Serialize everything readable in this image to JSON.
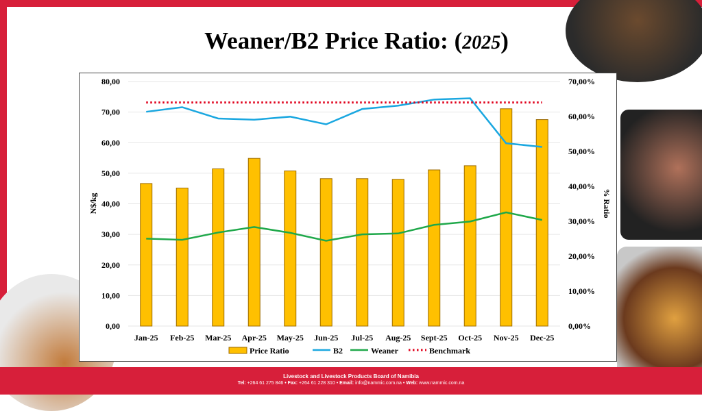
{
  "title": {
    "main": "Weaner/B2 Price Ratio: (",
    "year": "2025",
    "close": ")"
  },
  "footer": {
    "org": "Livestock and Livestock Products Board of Namibia",
    "tel_label": "Tel:",
    "tel": "+264 61 275 846",
    "fax_label": "Fax:",
    "fax": "+264 61 228 310",
    "email_label": "Email:",
    "email": "info@nammic.com.na",
    "web_label": "Web:",
    "web": "www.nammic.com.na"
  },
  "colors": {
    "frame": "#d71f3a",
    "bars": "#ffc000",
    "bar_border": "#9c6a00",
    "b2": "#1aa7e0",
    "weaner": "#1fa84a",
    "benchmark": "#e0001b"
  },
  "chart_data": {
    "type": "bar+line",
    "categories": [
      "Jan-25",
      "Feb-25",
      "Mar-25",
      "Apr-25",
      "May-25",
      "Jun-25",
      "Jul-25",
      "Aug-25",
      "Sept-25",
      "Oct-25",
      "Nov-25",
      "Dec-25"
    ],
    "ylabel": "N$/kg",
    "y2label": "% Ratio",
    "ylim": [
      0,
      80
    ],
    "y2lim": [
      0,
      70
    ],
    "yticks": [
      "0,00",
      "10,00",
      "20,00",
      "30,00",
      "40,00",
      "50,00",
      "60,00",
      "70,00",
      "80,00"
    ],
    "y2ticks": [
      "0,00%",
      "10,00%",
      "20,00%",
      "30,00%",
      "40,00%",
      "50,00%",
      "60,00%",
      "70,00%"
    ],
    "grid": true,
    "legend_position": "bottom",
    "series": [
      {
        "name": "Price Ratio",
        "type": "bar",
        "axis": "right",
        "values": [
          40.8,
          39.5,
          45.0,
          48.0,
          44.4,
          42.2,
          42.2,
          42.0,
          44.7,
          45.9,
          62.2,
          59.1
        ]
      },
      {
        "name": "B2",
        "type": "line",
        "axis": "left",
        "values": [
          70.1,
          71.6,
          67.9,
          67.5,
          68.5,
          66.0,
          71.0,
          72.1,
          74.1,
          74.5,
          59.8,
          58.6
        ]
      },
      {
        "name": "Weaner",
        "type": "line",
        "axis": "left",
        "values": [
          28.6,
          28.2,
          30.6,
          32.4,
          30.5,
          27.9,
          30.0,
          30.3,
          33.1,
          34.2,
          37.2,
          34.7
        ]
      },
      {
        "name": "Benchmark",
        "type": "dotted-line",
        "axis": "right",
        "values": [
          64,
          64,
          64,
          64,
          64,
          64,
          64,
          64,
          64,
          64,
          64,
          64
        ]
      }
    ]
  }
}
